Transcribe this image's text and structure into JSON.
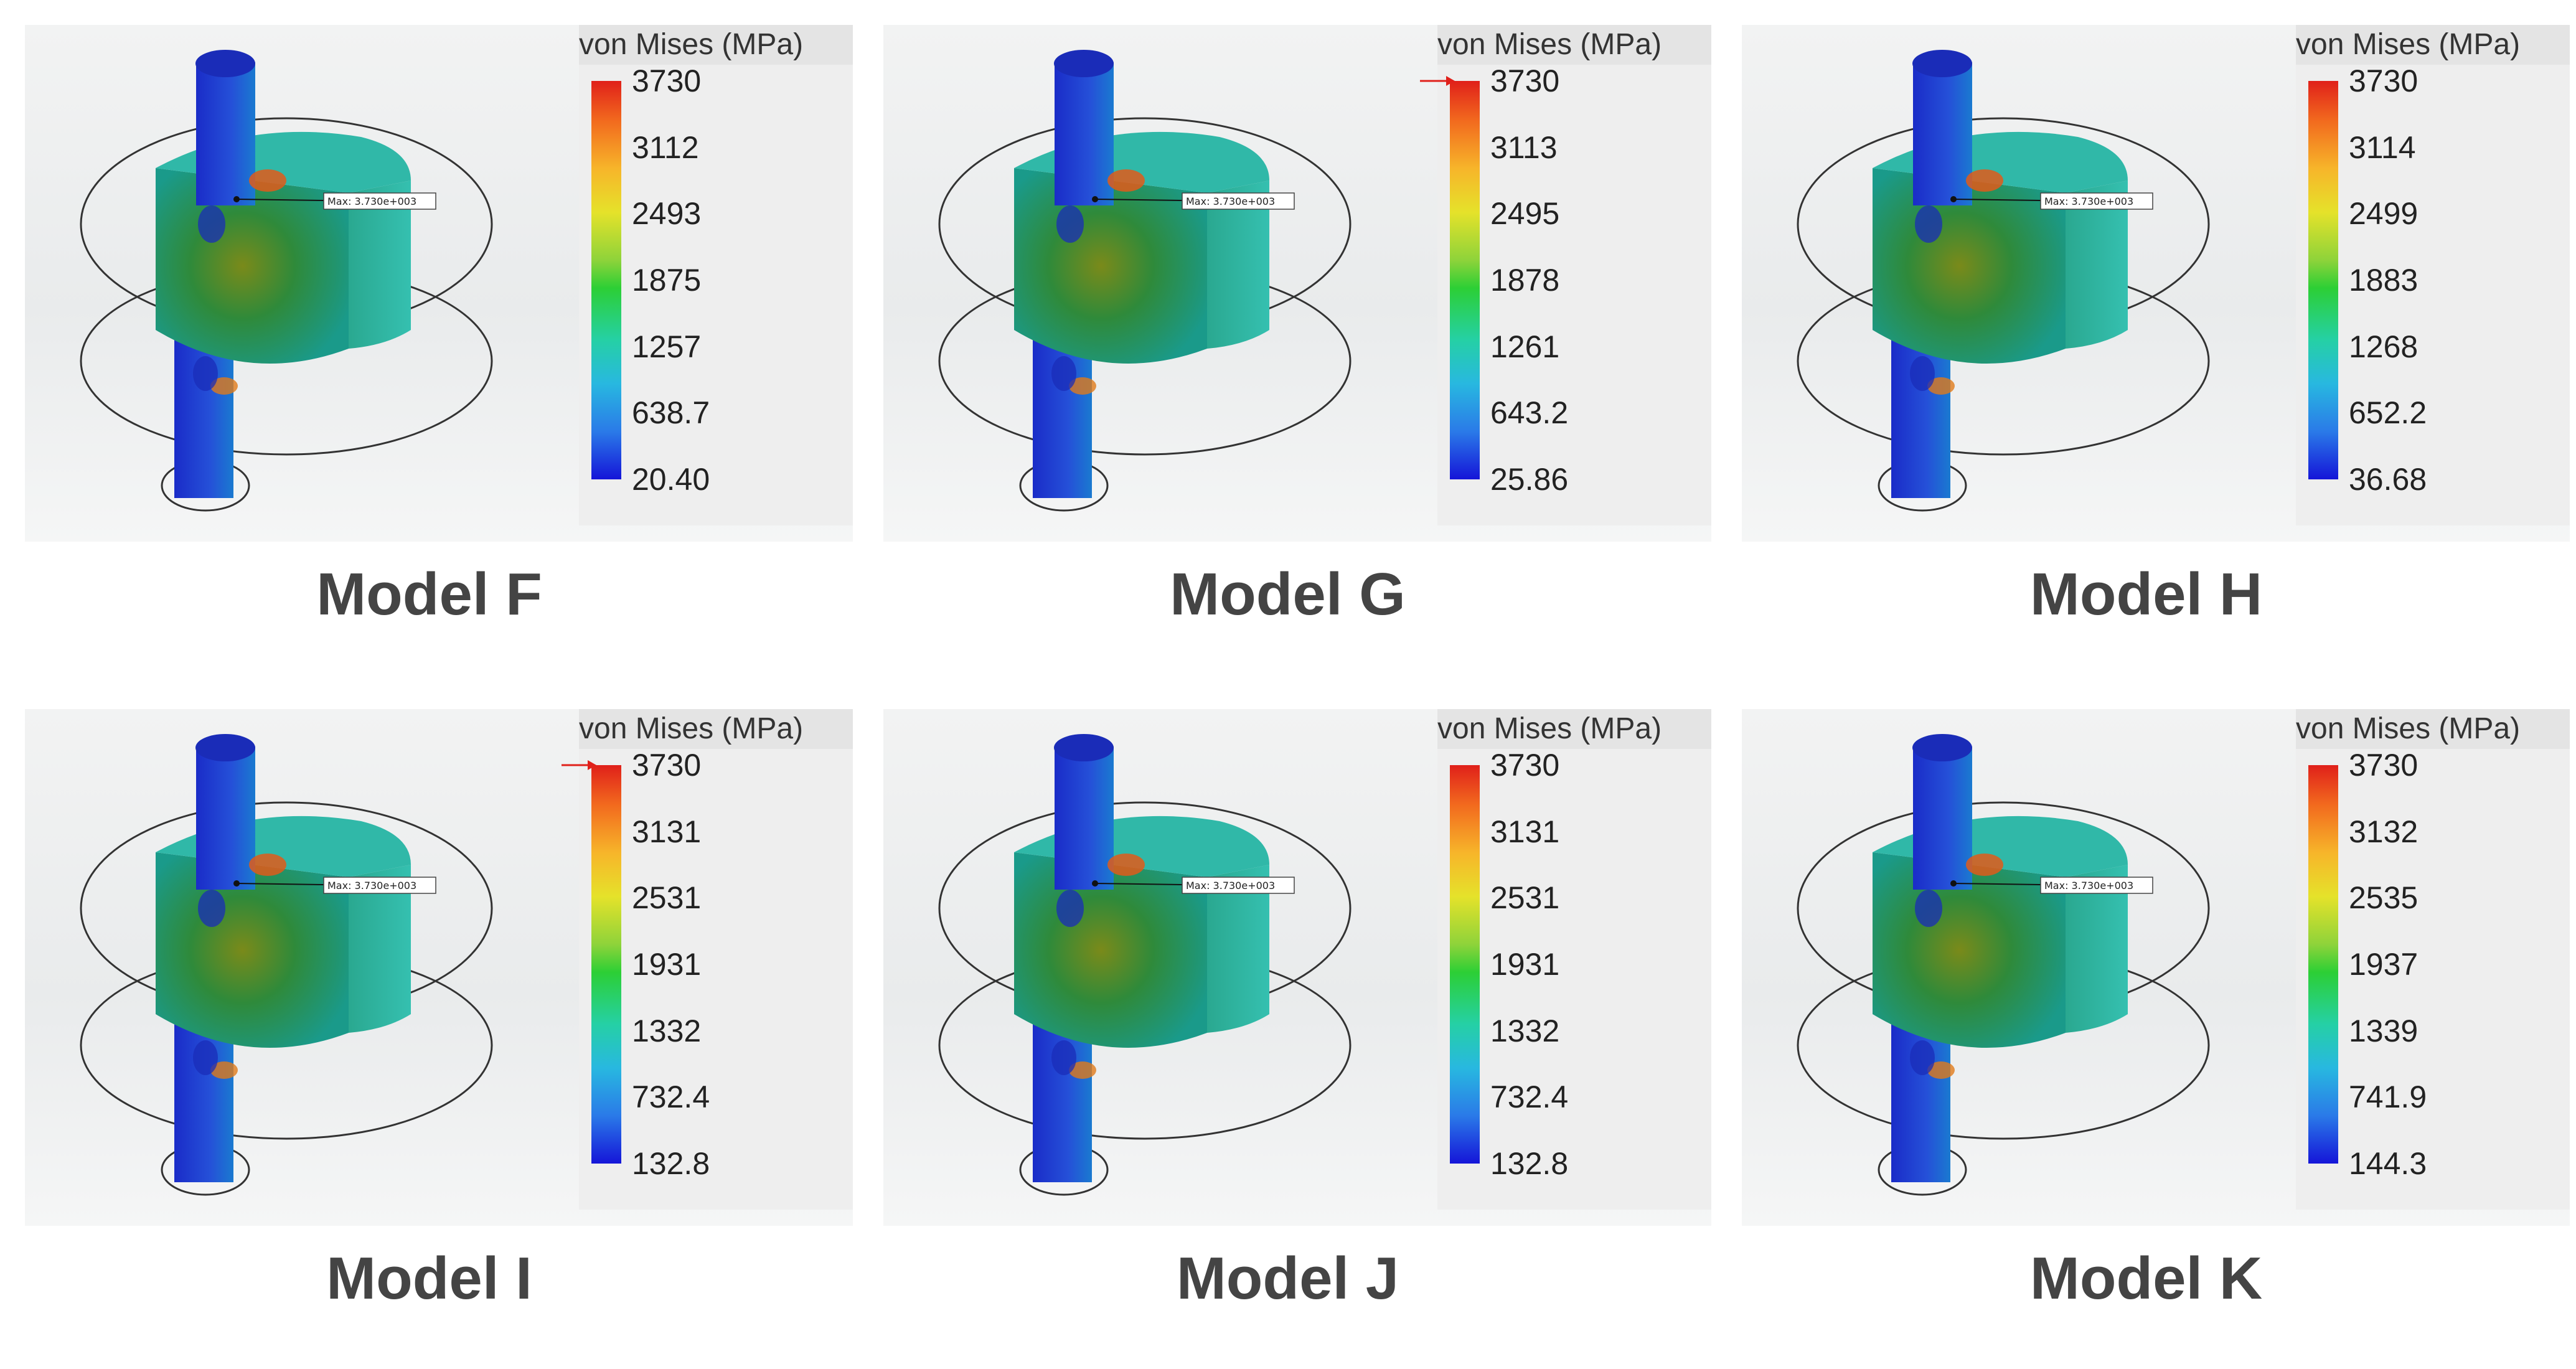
{
  "legend_title": "von Mises (MPa)",
  "colors": {
    "max": "#e0201a",
    "mid": "#2ccf35",
    "min": "#1515d8"
  },
  "panels": [
    {
      "caption": "Model F",
      "ticks": [
        "3730",
        "3112",
        "2493",
        "1875",
        "1257",
        "638.7",
        "20.40"
      ],
      "probe": "Max: 3.730e+003",
      "max_arrow": false
    },
    {
      "caption": "Model G",
      "ticks": [
        "3730",
        "3113",
        "2495",
        "1878",
        "1261",
        "643.2",
        "25.86"
      ],
      "probe": "Max: 3.730e+003",
      "max_arrow": true
    },
    {
      "caption": "Model H",
      "ticks": [
        "3730",
        "3114",
        "2499",
        "1883",
        "1268",
        "652.2",
        "36.68"
      ],
      "probe": "Max: 3.730e+003",
      "max_arrow": false
    },
    {
      "caption": "Model I",
      "ticks": [
        "3730",
        "3131",
        "2531",
        "1931",
        "1332",
        "732.4",
        "132.8"
      ],
      "probe": "Max: 3.730e+003",
      "max_arrow": true
    },
    {
      "caption": "Model J",
      "ticks": [
        "3730",
        "3131",
        "2531",
        "1931",
        "1332",
        "732.4",
        "132.8"
      ],
      "probe": "Max: 3.730e+003",
      "max_arrow": false
    },
    {
      "caption": "Model K",
      "ticks": [
        "3730",
        "3132",
        "2535",
        "1937",
        "1339",
        "741.9",
        "144.3"
      ],
      "probe": "Max: 3.730e+003",
      "max_arrow": false
    }
  ]
}
